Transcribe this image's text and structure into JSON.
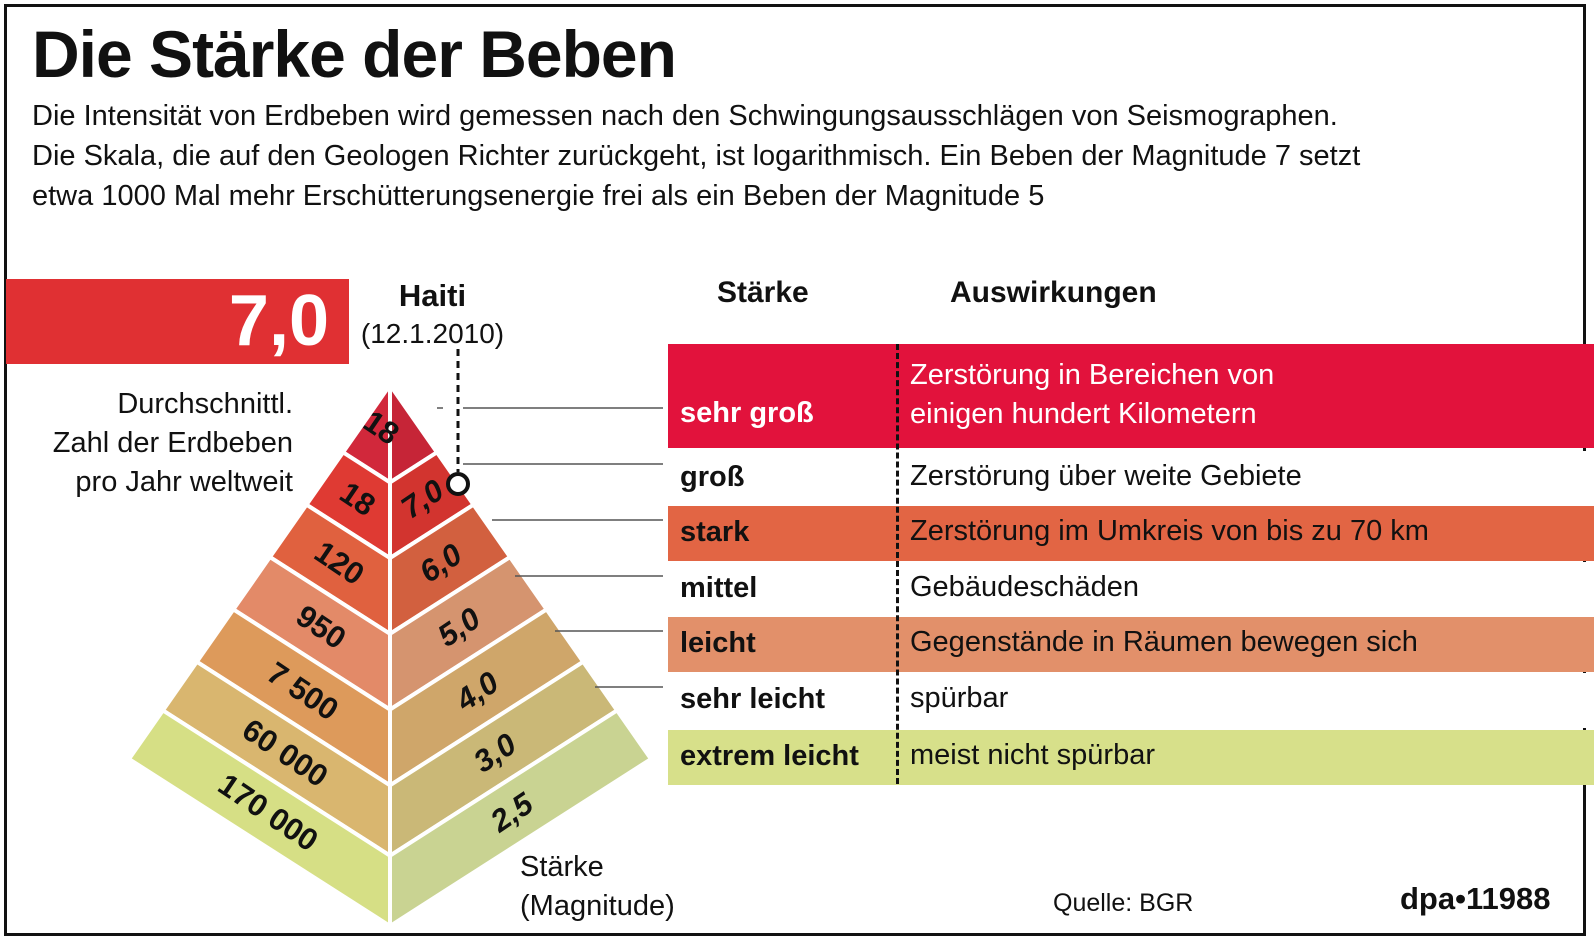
{
  "title": "Die Stärke der Beben",
  "intro": [
    "Die Intensität von Erdbeben wird gemessen nach den Schwingungsausschlägen von Seismographen.",
    "Die Skala, die auf den Geologen Richter zurückgeht, ist logarithmisch. Ein Beben der Magnitude 7 setzt",
    "etwa 1000 Mal mehr Erschütterungsenergie frei als ein Beben der Magnitude 5"
  ],
  "haiti": {
    "magnitude": "7,0",
    "name": "Haiti",
    "date": "(12.1.2010)"
  },
  "avg_label": [
    "Durchschnittl.",
    "Zahl der Erdbeben",
    "pro Jahr weltweit"
  ],
  "magnitude_label": [
    "Stärke",
    "(Magnitude)"
  ],
  "table_headers": {
    "strength": "Stärke",
    "effects": "Auswirkungen"
  },
  "levels": [
    {
      "count": "18",
      "magnitude": "",
      "strength": "sehr groß",
      "effect": [
        "Zerstörung in Bereichen von",
        "einigen hundert Kilometern"
      ],
      "color": "#e0293f",
      "pyr_left": "#d1283b",
      "pyr_right": "#c62537",
      "row_bg": "#e2123c",
      "text_color": "#ffffff"
    },
    {
      "count": "18",
      "magnitude": "7,0",
      "strength": "groß",
      "effect": [
        "Zerstörung über weite Gebiete"
      ],
      "color": "#ffffff",
      "pyr_left": "#df3a33",
      "pyr_right": "#d2342f",
      "row_bg": "#ffffff",
      "text_color": "#111111"
    },
    {
      "count": "120",
      "magnitude": "6,0",
      "strength": "stark",
      "effect": [
        "Zerstörung im Umkreis von bis zu 70 km"
      ],
      "color": "#e36446",
      "pyr_left": "#e0613f",
      "pyr_right": "#d2603f",
      "row_bg": "#e26544",
      "text_color": "#111111"
    },
    {
      "count": "950",
      "magnitude": "5,0",
      "strength": "mittel",
      "effect": [
        "Gebäudeschäden"
      ],
      "color": "#ffffff",
      "pyr_left": "#e38a68",
      "pyr_right": "#d5946f",
      "row_bg": "#ffffff",
      "text_color": "#111111"
    },
    {
      "count": "7 500",
      "magnitude": "4,0",
      "strength": "leicht",
      "effect": [
        "Gegenstände in Räumen bewegen sich"
      ],
      "color": "#e0906a",
      "pyr_left": "#dd9a5b",
      "pyr_right": "#cfa66a",
      "row_bg": "#e2906a",
      "text_color": "#111111"
    },
    {
      "count": "60 000",
      "magnitude": "3,0",
      "strength": "sehr leicht",
      "effect": [
        "spürbar"
      ],
      "color": "#ffffff",
      "pyr_left": "#d9b66f",
      "pyr_right": "#cab877",
      "row_bg": "#ffffff",
      "text_color": "#111111"
    },
    {
      "count": "170 000",
      "magnitude": "2,5",
      "strength": "extrem leicht",
      "effect": [
        "meist nicht spürbar"
      ],
      "color": "#d3de8a",
      "pyr_left": "#d6df85",
      "pyr_right": "#c9d392",
      "row_bg": "#d7e08a",
      "text_color": "#111111"
    }
  ],
  "source": "Quelle: BGR",
  "credit": "dpa•11988"
}
